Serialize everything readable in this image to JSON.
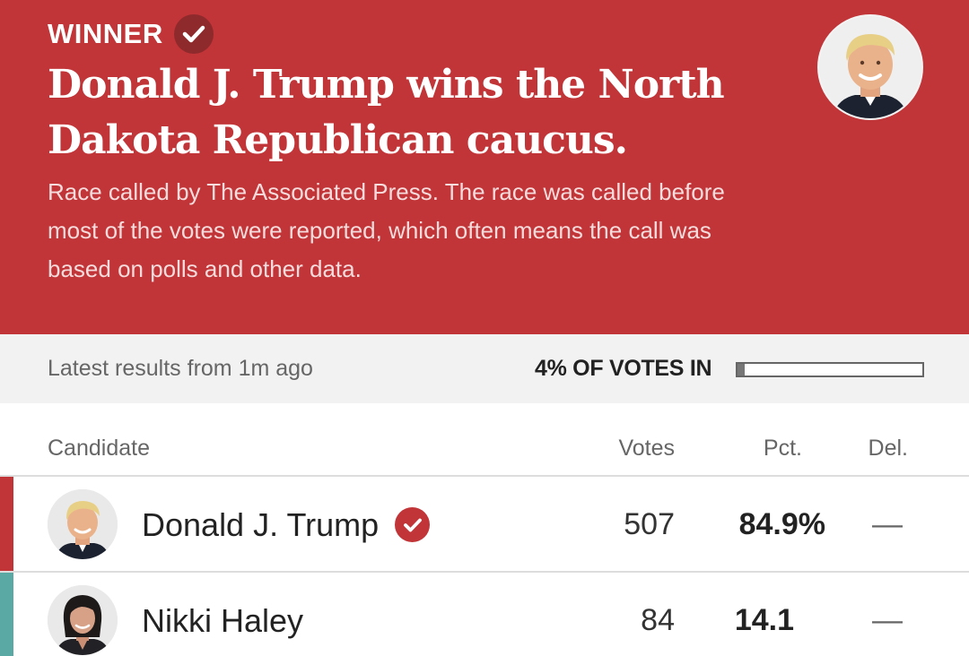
{
  "banner": {
    "winner_label": "WINNER",
    "headline": "Donald J. Trump wins the North Dakota Republican caucus.",
    "subtext": "Race called by The Associated Press. The race was called before most of the votes were reported, which often means the call was based on polls and other data.",
    "background_color": "#c13437",
    "photo_icon": "candidate-portrait-trump"
  },
  "status": {
    "latest_results": "Latest results from 1m ago",
    "votes_in_label": "4% OF VOTES IN",
    "votes_in_fraction": 0.04
  },
  "table": {
    "columns": {
      "candidate": "Candidate",
      "votes": "Votes",
      "pct": "Pct.",
      "del": "Del."
    },
    "rows": [
      {
        "name": "Donald J. Trump",
        "votes": "507",
        "pct": "84.9%",
        "del": "—",
        "winner": true,
        "party_color": "#c13437",
        "photo_icon": "candidate-portrait-trump"
      },
      {
        "name": "Nikki Haley",
        "votes": "84",
        "pct": "14.1",
        "del": "—",
        "winner": false,
        "party_color": "#5aa9a4",
        "photo_icon": "candidate-portrait-haley"
      }
    ]
  }
}
